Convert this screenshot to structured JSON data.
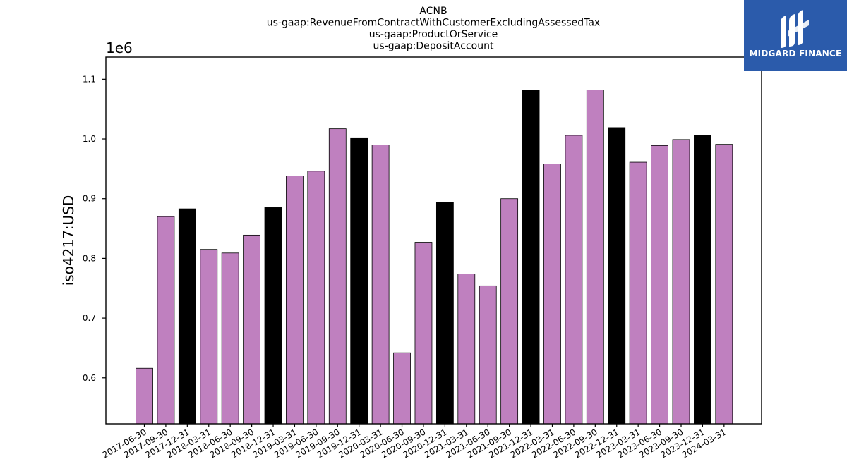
{
  "logo": {
    "brand_text": "MIDGARD FINANCE",
    "icon": "midgard-m-logo-icon",
    "background": "#2b5bab"
  },
  "chart_data": {
    "type": "bar",
    "title_lines": [
      "ACNB",
      "us-gaap:RevenueFromContractWithCustomerExcludingAssessedTax",
      "us-gaap:ProductOrService",
      "us-gaap:DepositAccount"
    ],
    "xlabel": "",
    "ylabel": "iso4217:USD",
    "offset_text": "1e6",
    "ylim": [
      0.523,
      1.137
    ],
    "yticks": [
      0.6,
      0.7,
      0.8,
      0.9,
      1.0,
      1.1
    ],
    "ytick_labels": [
      "0.6",
      "0.7",
      "0.8",
      "0.9",
      "1.0",
      "1.1"
    ],
    "grid": false,
    "colors": {
      "default": "#bf80bf",
      "year_end": "#000000",
      "edge": "#000000"
    },
    "categories": [
      "2017-06-30",
      "2017-09-30",
      "2017-12-31",
      "2018-03-31",
      "2018-06-30",
      "2018-09-30",
      "2018-12-31",
      "2019-03-31",
      "2019-06-30",
      "2019-09-30",
      "2019-12-31",
      "2020-03-31",
      "2020-06-30",
      "2020-09-30",
      "2020-12-31",
      "2021-03-31",
      "2021-06-30",
      "2021-09-30",
      "2021-12-31",
      "2022-03-31",
      "2022-06-30",
      "2022-09-30",
      "2022-12-31",
      "2023-03-31",
      "2023-06-30",
      "2023-09-30",
      "2023-12-31",
      "2024-03-31"
    ],
    "values": [
      0.616,
      0.87,
      0.883,
      0.815,
      0.809,
      0.839,
      0.885,
      0.938,
      0.946,
      1.017,
      1.002,
      0.99,
      0.642,
      0.827,
      0.894,
      0.774,
      0.754,
      0.9,
      1.082,
      0.958,
      1.006,
      1.082,
      1.019,
      0.961,
      0.989,
      0.999,
      1.006,
      0.991
    ],
    "highlight": [
      false,
      false,
      true,
      false,
      false,
      false,
      true,
      false,
      false,
      false,
      true,
      false,
      false,
      false,
      true,
      false,
      false,
      false,
      true,
      false,
      false,
      false,
      true,
      false,
      false,
      false,
      true,
      false
    ]
  }
}
